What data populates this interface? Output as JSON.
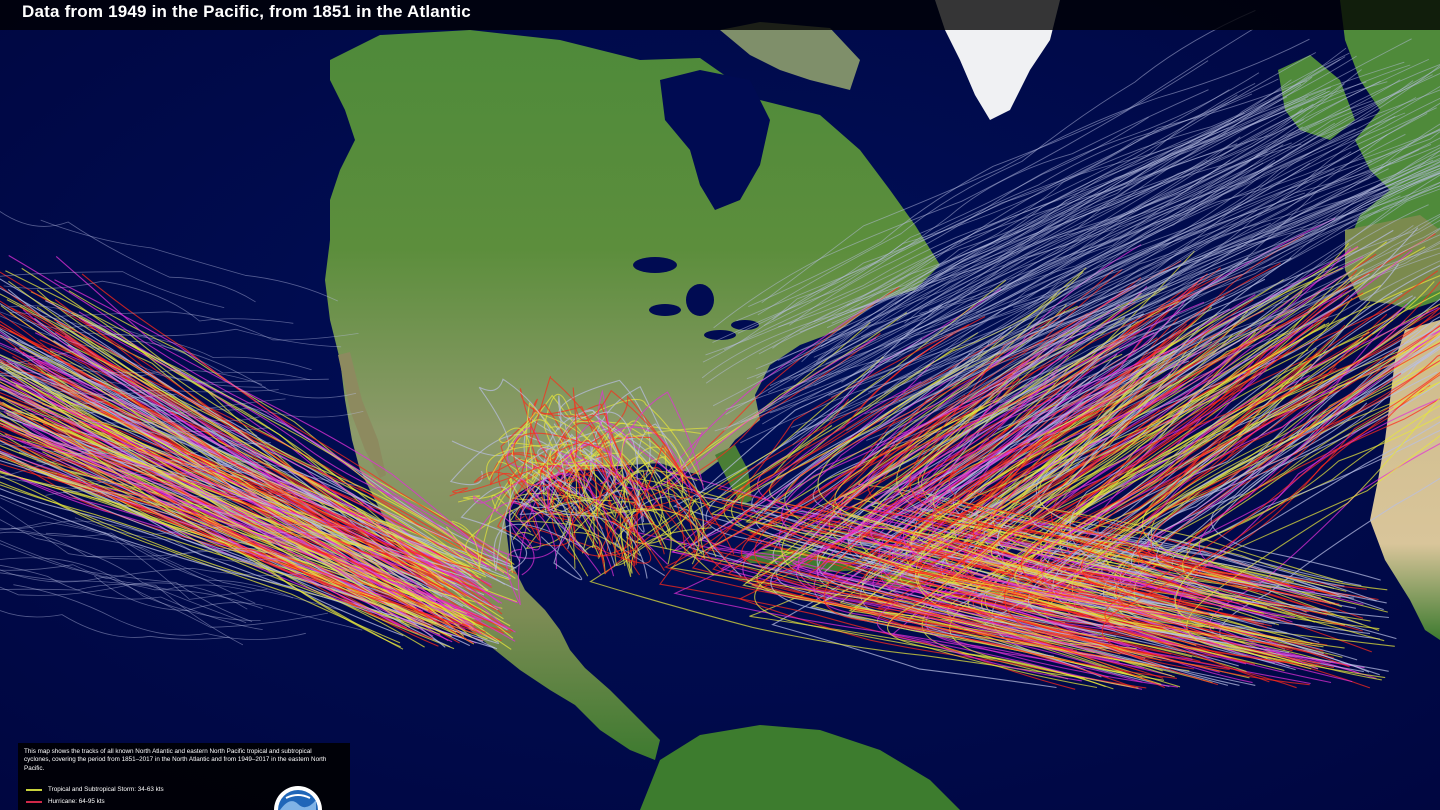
{
  "title": "Data from 1949 in the Pacific, from 1851 in the Atlantic",
  "legend": {
    "description": "This map shows the tracks of all known North Atlantic and eastern North Pacific tropical and subtropical cyclones, covering the period from 1851–2017 in the North Atlantic and from 1949–2017 in the eastern North Pacific.",
    "items": [
      {
        "label": "Tropical and Subtropical Storm: 34-63 kts",
        "color": "#c8d23c"
      },
      {
        "label": "Hurricane: 64-95 kts",
        "color": "#d02848"
      }
    ]
  },
  "logo": "noaa-logo",
  "colors": {
    "ocean": "#00104f",
    "land_green": "#3f7a2f",
    "land_desert": "#b6ab86",
    "ice": "#f2f2f2",
    "track_weak": "#b9bfe4",
    "track_storm": "#e6e63c",
    "track_hurricane": "#ff2a1a",
    "track_major": "#e22fd8"
  }
}
